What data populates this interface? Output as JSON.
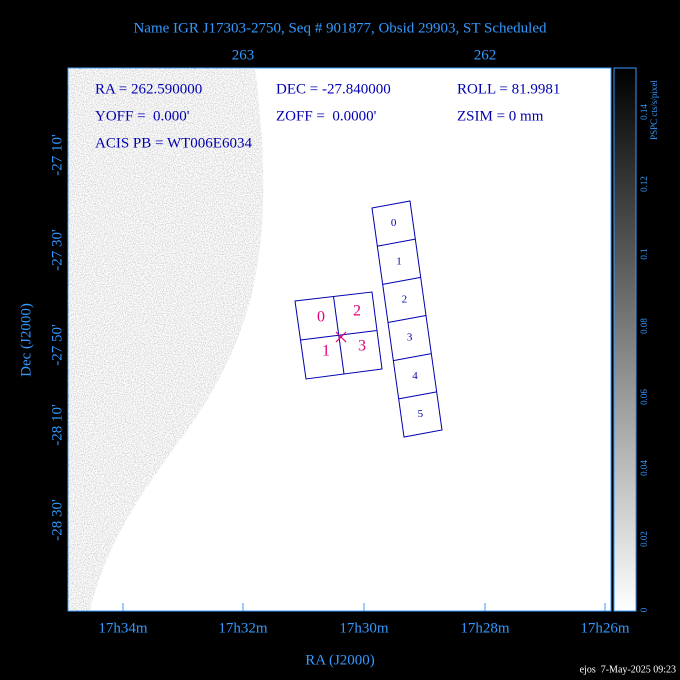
{
  "header": {
    "title": "Name IGR J17303-2750, Seq # 901877, Obsid 29903, ST Scheduled"
  },
  "top_axis": {
    "labels": [
      "263",
      "262"
    ]
  },
  "bottom_axis": {
    "labels": [
      "17h34m",
      "17h32m",
      "17h30m",
      "17h28m",
      "17h26m"
    ],
    "title": "RA (J2000)"
  },
  "left_axis": {
    "labels": [
      "-27 10'",
      "-27 30'",
      "-27 50'",
      "-28 10'",
      "-28 30'"
    ],
    "title": "Dec (J2000)"
  },
  "info": {
    "lines": [
      [
        "RA = 262.590000",
        "DEC = -27.840000",
        "ROLL = 81.9981"
      ],
      [
        "YOFF =  0.000'",
        "ZOFF =  0.0000'",
        "ZSIM = 0 mm"
      ],
      [
        "ACIS PB = WT006E6034"
      ]
    ]
  },
  "colorbar": {
    "title": "PSPC cts/s/pixel",
    "labels": [
      "0.14",
      "0.12",
      "0.1",
      "0.08",
      "0.06",
      "0.04",
      "0.02",
      "0"
    ]
  },
  "chips": {
    "i_array": [
      "0",
      "2",
      "1",
      "3"
    ],
    "s_array": [
      "0",
      "1",
      "2",
      "3",
      "4",
      "5"
    ]
  },
  "footer": {
    "text": "ejos  7-May-2025 09:23"
  }
}
